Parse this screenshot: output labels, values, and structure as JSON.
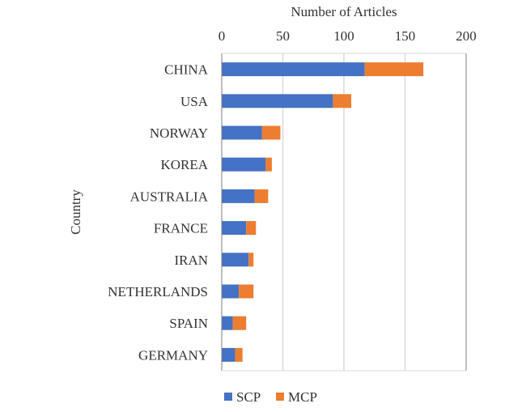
{
  "chart_data": {
    "type": "bar",
    "orientation": "horizontal",
    "stacked": true,
    "title": "",
    "xlabel": "Number of Articles",
    "ylabel": "Country",
    "xlim": [
      0,
      200
    ],
    "xticks": [
      0,
      50,
      100,
      150,
      200
    ],
    "x_axis_position": "top",
    "grid": true,
    "legend_position": "bottom",
    "categories": [
      "CHINA",
      "USA",
      "NORWAY",
      "KOREA",
      "AUSTRALIA",
      "FRANCE",
      "IRAN",
      "NETHERLANDS",
      "SPAIN",
      "GERMANY"
    ],
    "series": [
      {
        "name": "SCP",
        "color": "#4472C4",
        "values": [
          117,
          91,
          33,
          36,
          27,
          20,
          22,
          14,
          9,
          11
        ]
      },
      {
        "name": "MCP",
        "color": "#ED7D31",
        "values": [
          48,
          15,
          15,
          5,
          11,
          8,
          4,
          12,
          11,
          6
        ]
      }
    ]
  }
}
